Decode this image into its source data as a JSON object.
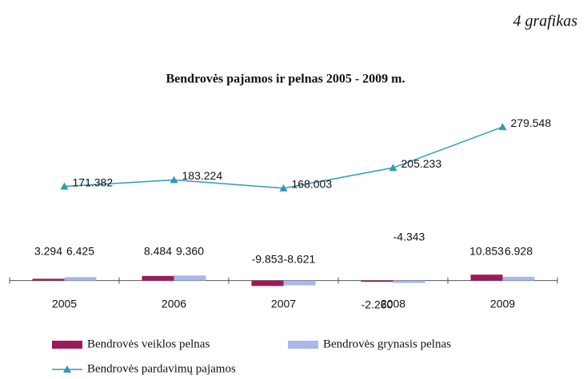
{
  "chart_data": {
    "type": "bar",
    "label": "4 grafikas",
    "title": "Bendrovės pajamos ir pelnas 2005 - 2009 m.",
    "categories": [
      "2005",
      "2006",
      "2007",
      "2008",
      "2009"
    ],
    "ylim": [
      -15,
      300
    ],
    "series": [
      {
        "name": "Bendrovės veiklos pelnas",
        "type": "bar",
        "color": "#9b1b5a",
        "values": [
          3.294,
          8.484,
          -9.853,
          -2.26,
          10.853
        ],
        "value_labels": [
          "3.294",
          "8.484",
          "-9.853",
          "-2.260",
          "10.853"
        ]
      },
      {
        "name": "Bendrovės grynasis pelnas",
        "type": "bar",
        "color": "#a9b8e8",
        "values": [
          6.425,
          9.36,
          -8.621,
          -4.343,
          6.928
        ],
        "value_labels": [
          "6.425",
          "9.360",
          "-8.621",
          "-4.343",
          "6.928"
        ]
      },
      {
        "name": "Bendrovės pardavimų pajamos",
        "type": "line",
        "color": "#2f9bb5",
        "values": [
          171.382,
          183.224,
          168.003,
          205.233,
          279.548
        ],
        "value_labels": [
          "171.382",
          "183.224",
          "168.003",
          "205.233",
          "279.548"
        ]
      }
    ]
  }
}
